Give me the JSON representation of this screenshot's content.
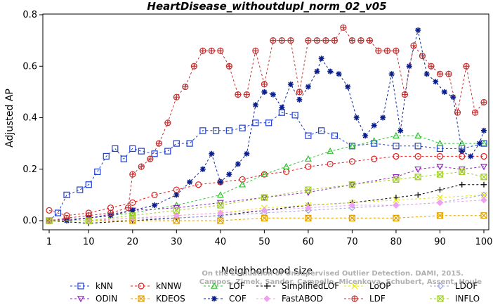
{
  "chart_data": {
    "type": "line",
    "title": "HeartDisease_withoutdupl_norm_02_v05",
    "xlabel": "Neighborhood size",
    "ylabel": "Adjusted AP",
    "xlim": [
      1,
      100
    ],
    "ylim": [
      -0.02,
      0.8
    ],
    "xticks": [
      1,
      10,
      20,
      30,
      40,
      50,
      60,
      70,
      80,
      90,
      100
    ],
    "yticks": [
      0.0,
      0.2,
      0.4,
      0.6,
      0.8
    ],
    "xtick_labels": [
      "1",
      "10",
      "20",
      "30",
      "40",
      "50",
      "60",
      "70",
      "80",
      "90",
      "100"
    ],
    "ytick_labels": [
      "0.0",
      "0.2",
      "0.4",
      "0.6",
      "0.8"
    ],
    "grid": false,
    "legend_position": "bottom",
    "watermark": [
      "Campos, Zimek, Sander, Campello, Micenkova, Schubert, Assent, Houle",
      "On the Evaluation of Unsupervised Outlier Detection. DAMI, 2015."
    ],
    "series": [
      {
        "name": "kNN",
        "color": "#1f3fd0",
        "marker": "square",
        "x": [
          1,
          3,
          5,
          8,
          10,
          12,
          14,
          16,
          18,
          20,
          22,
          25,
          28,
          30,
          33,
          36,
          39,
          42,
          45,
          48,
          51,
          54,
          57,
          60,
          63,
          66,
          70,
          75,
          80,
          85,
          90,
          95,
          100
        ],
        "y": [
          0.0,
          0.03,
          0.1,
          0.12,
          0.14,
          0.19,
          0.25,
          0.28,
          0.24,
          0.28,
          0.27,
          0.26,
          0.27,
          0.3,
          0.3,
          0.35,
          0.35,
          0.35,
          0.36,
          0.38,
          0.38,
          0.42,
          0.41,
          0.33,
          0.35,
          0.33,
          0.29,
          0.3,
          0.29,
          0.29,
          0.28,
          0.28,
          0.3
        ]
      },
      {
        "name": "kNNW",
        "color": "#e02020",
        "marker": "circle",
        "x": [
          1,
          5,
          10,
          15,
          20,
          25,
          30,
          35,
          40,
          45,
          50,
          55,
          60,
          65,
          70,
          75,
          80,
          85,
          90,
          95,
          100
        ],
        "y": [
          0.04,
          0.02,
          0.03,
          0.05,
          0.07,
          0.1,
          0.12,
          0.14,
          0.15,
          0.16,
          0.18,
          0.19,
          0.21,
          0.22,
          0.23,
          0.24,
          0.25,
          0.25,
          0.25,
          0.25,
          0.25
        ]
      },
      {
        "name": "LOF",
        "color": "#30c030",
        "marker": "triangle-up",
        "x": [
          1,
          10,
          20,
          30,
          40,
          45,
          50,
          55,
          60,
          65,
          70,
          75,
          80,
          85,
          90,
          95,
          100
        ],
        "y": [
          0.0,
          0.01,
          0.03,
          0.06,
          0.1,
          0.14,
          0.18,
          0.21,
          0.24,
          0.27,
          0.29,
          0.31,
          0.33,
          0.33,
          0.3,
          0.3,
          0.3
        ]
      },
      {
        "name": "SimplifiedLOF",
        "color": "#000000",
        "marker": "plus",
        "x": [
          1,
          10,
          20,
          30,
          40,
          50,
          60,
          70,
          80,
          85,
          90,
          95,
          100
        ],
        "y": [
          0.0,
          -0.01,
          0.0,
          0.01,
          0.02,
          0.04,
          0.06,
          0.07,
          0.09,
          0.1,
          0.12,
          0.14,
          0.14
        ]
      },
      {
        "name": "LoOP",
        "color": "#e8e800",
        "marker": "cross",
        "x": [
          1,
          10,
          20,
          30,
          40,
          50,
          60,
          70,
          80,
          90,
          100
        ],
        "y": [
          0.0,
          0.0,
          0.01,
          0.02,
          0.03,
          0.05,
          0.06,
          0.07,
          0.08,
          0.09,
          0.1
        ]
      },
      {
        "name": "LDOF",
        "color": "#a0a0e0",
        "marker": "diamond",
        "x": [
          1,
          10,
          20,
          30,
          40,
          50,
          60,
          70,
          80,
          90,
          100
        ],
        "y": [
          0.0,
          0.0,
          0.01,
          0.01,
          0.02,
          0.03,
          0.04,
          0.05,
          0.06,
          0.07,
          0.1
        ]
      },
      {
        "name": "ODIN",
        "color": "#9020c0",
        "marker": "triangle-down",
        "x": [
          1,
          10,
          20,
          30,
          40,
          50,
          60,
          70,
          80,
          85,
          90,
          95,
          100
        ],
        "y": [
          0.0,
          0.01,
          0.04,
          0.05,
          0.07,
          0.09,
          0.11,
          0.14,
          0.17,
          0.2,
          0.21,
          0.2,
          0.21
        ]
      },
      {
        "name": "KDEOS",
        "color": "#e0a000",
        "marker": "square-x",
        "x": [
          1,
          10,
          20,
          30,
          40,
          50,
          60,
          70,
          80,
          90,
          100
        ],
        "y": [
          0.0,
          0.0,
          0.0,
          0.0,
          0.0,
          0.01,
          0.01,
          0.01,
          0.01,
          0.02,
          0.02
        ]
      },
      {
        "name": "COF",
        "color": "#0a1f8f",
        "marker": "star",
        "x": [
          1,
          5,
          10,
          15,
          20,
          25,
          30,
          33,
          36,
          38,
          40,
          42,
          44,
          46,
          48,
          50,
          52,
          54,
          56,
          58,
          60,
          62,
          63,
          65,
          67,
          69,
          71,
          73,
          75,
          77,
          79,
          81,
          83,
          85,
          87,
          89,
          91,
          93,
          95,
          97,
          99,
          100
        ],
        "y": [
          0.0,
          0.0,
          0.01,
          0.02,
          0.04,
          0.06,
          0.1,
          0.15,
          0.2,
          0.26,
          0.15,
          0.18,
          0.22,
          0.26,
          0.45,
          0.5,
          0.49,
          0.44,
          0.53,
          0.47,
          0.52,
          0.58,
          0.63,
          0.58,
          0.57,
          0.52,
          0.4,
          0.33,
          0.37,
          0.4,
          0.57,
          0.35,
          0.6,
          0.74,
          0.57,
          0.54,
          0.5,
          0.48,
          0.27,
          0.25,
          0.3,
          0.35
        ]
      },
      {
        "name": "FastABOD",
        "color": "#f0a0f0",
        "marker": "diamond-filled",
        "x": [
          1,
          10,
          20,
          30,
          40,
          50,
          60,
          70,
          80,
          90,
          100
        ],
        "y": [
          0.0,
          0.0,
          0.01,
          0.02,
          0.03,
          0.04,
          0.05,
          0.06,
          0.06,
          0.07,
          0.08
        ]
      },
      {
        "name": "LDF",
        "color": "#c03030",
        "marker": "circle-plus",
        "x": [
          1,
          5,
          10,
          15,
          19,
          20,
          22,
          24,
          26,
          28,
          30,
          32,
          34,
          36,
          38,
          40,
          42,
          44,
          46,
          48,
          50,
          52,
          54,
          56,
          58,
          60,
          62,
          64,
          66,
          68,
          70,
          72,
          74,
          76,
          78,
          80,
          82,
          84,
          86,
          88,
          90,
          92,
          94,
          96,
          98,
          100
        ],
        "y": [
          0.0,
          0.01,
          0.02,
          0.03,
          0.05,
          0.18,
          0.21,
          0.24,
          0.3,
          0.38,
          0.48,
          0.52,
          0.6,
          0.66,
          0.66,
          0.66,
          0.6,
          0.49,
          0.49,
          0.66,
          0.53,
          0.7,
          0.7,
          0.7,
          0.5,
          0.7,
          0.7,
          0.7,
          0.7,
          0.75,
          0.7,
          0.7,
          0.7,
          0.66,
          0.66,
          0.66,
          0.49,
          0.68,
          0.64,
          0.6,
          0.57,
          0.57,
          0.42,
          0.6,
          0.42,
          0.46
        ]
      },
      {
        "name": "INFLO",
        "color": "#a0d020",
        "marker": "hourglass",
        "x": [
          1,
          10,
          20,
          30,
          40,
          50,
          60,
          70,
          80,
          85,
          90,
          95,
          100
        ],
        "y": [
          0.0,
          0.0,
          0.02,
          0.04,
          0.06,
          0.09,
          0.12,
          0.14,
          0.16,
          0.17,
          0.18,
          0.19,
          0.17
        ]
      }
    ]
  }
}
